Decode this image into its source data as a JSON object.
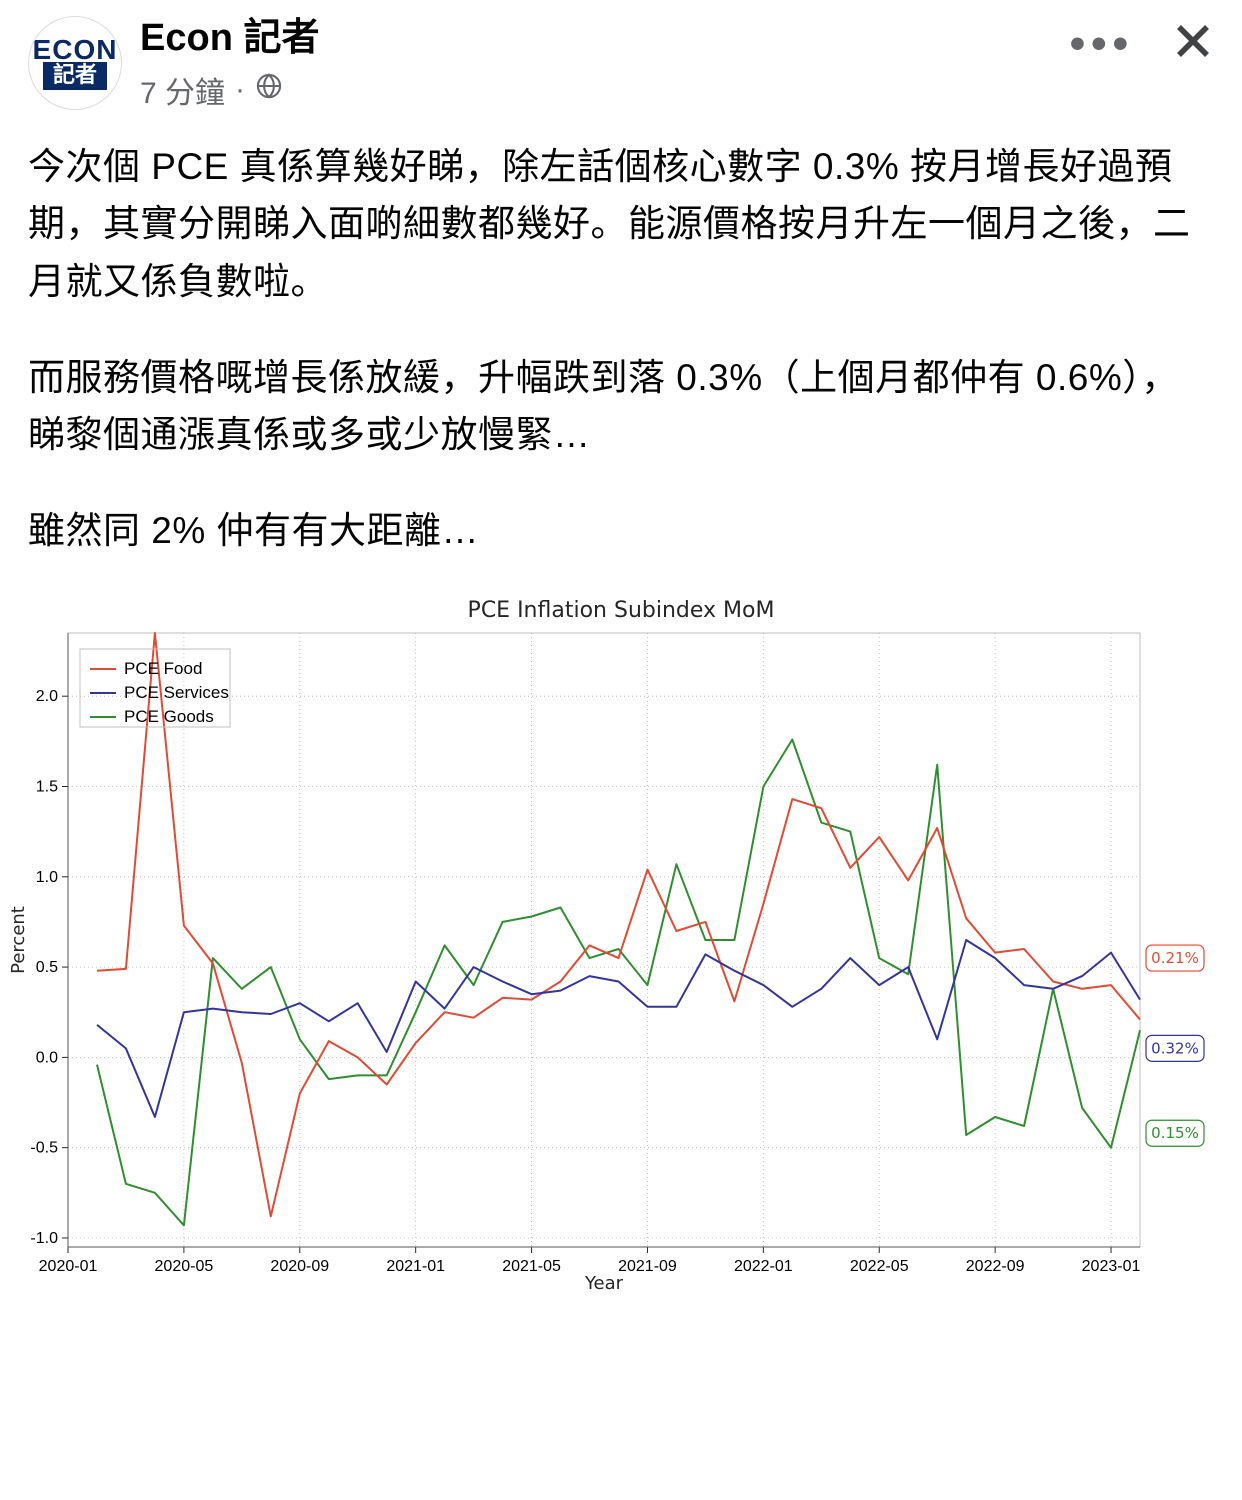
{
  "header": {
    "author": "Econ 記者",
    "avatar_top": "ECON",
    "avatar_bottom": "記者",
    "timestamp": "7 分鐘",
    "separator": "·",
    "privacy_icon": "globe-icon"
  },
  "actions": {
    "more_label": "•••",
    "close_label": "✕"
  },
  "body": {
    "p1": "今次個 PCE 真係算幾好睇，除左話個核心數字 0.3% 按月增長好過預期，其實分開睇入面啲細數都幾好。能源價格按月升左一個月之後，二月就又係負數啦。",
    "p2": "而服務價格嘅增長係放緩，升幅跌到落 0.3%（上個月都仲有 0.6%），睇黎個通漲真係或多或少放慢緊…",
    "p3": "雖然同 2% 仲有有大距離…"
  },
  "chart": {
    "type": "line",
    "title": "PCE Inflation Subindex MoM",
    "xlabel": "Year",
    "ylabel": "Percent",
    "background_color": "#ffffff",
    "grid_color": "#b0b0b0",
    "grid_dash": "1,3",
    "axis_color": "#262626",
    "title_fontsize": 22,
    "label_fontsize": 18,
    "tick_fontsize": 16,
    "line_width": 2,
    "x_ticks": [
      "2020-01",
      "2020-05",
      "2020-09",
      "2021-01",
      "2021-05",
      "2021-09",
      "2022-01",
      "2022-05",
      "2022-09",
      "2023-01"
    ],
    "x_tick_idx": [
      0,
      4,
      8,
      12,
      16,
      20,
      24,
      28,
      32,
      36
    ],
    "x_count": 38,
    "ylim": [
      -1.05,
      2.35
    ],
    "y_ticks": [
      -1.0,
      -0.5,
      0.0,
      0.5,
      1.0,
      1.5,
      2.0
    ],
    "legend": {
      "position": "upper-left",
      "items": [
        {
          "label": "PCE Food",
          "color": "#e24a33"
        },
        {
          "label": "PCE Services",
          "color": "#34349f"
        },
        {
          "label": "PCE Goods",
          "color": "#2f8f2f"
        }
      ]
    },
    "series": {
      "food": {
        "color": "#e24a33",
        "end_label": "0.21%",
        "values": [
          null,
          0.48,
          0.49,
          2.35,
          0.73,
          0.52,
          -0.03,
          -0.88,
          -0.2,
          0.09,
          0.0,
          -0.15,
          0.08,
          0.25,
          0.22,
          0.33,
          0.32,
          0.42,
          0.62,
          0.55,
          1.04,
          0.7,
          0.75,
          0.31,
          0.85,
          1.43,
          1.38,
          1.05,
          1.22,
          0.98,
          1.27,
          0.77,
          0.58,
          0.6,
          0.42,
          0.38,
          0.4,
          0.21
        ]
      },
      "services": {
        "color": "#34349f",
        "end_label": "0.32%",
        "values": [
          null,
          0.18,
          0.05,
          -0.33,
          0.25,
          0.27,
          0.25,
          0.24,
          0.3,
          0.2,
          0.3,
          0.03,
          0.42,
          0.27,
          0.5,
          0.42,
          0.35,
          0.37,
          0.45,
          0.42,
          0.28,
          0.28,
          0.57,
          0.48,
          0.4,
          0.28,
          0.38,
          0.55,
          0.4,
          0.5,
          0.1,
          0.65,
          0.55,
          0.4,
          0.38,
          0.45,
          0.58,
          0.32
        ]
      },
      "goods": {
        "color": "#2f8f2f",
        "end_label": "0.15%",
        "values": [
          null,
          -0.04,
          -0.7,
          -0.75,
          -0.93,
          0.55,
          0.38,
          0.5,
          0.1,
          -0.12,
          -0.1,
          -0.1,
          0.25,
          0.62,
          0.4,
          0.75,
          0.78,
          0.83,
          0.55,
          0.6,
          0.4,
          1.07,
          0.65,
          0.65,
          1.5,
          1.76,
          1.3,
          1.25,
          0.55,
          0.46,
          1.62,
          -0.43,
          -0.33,
          -0.38,
          0.38,
          -0.28,
          -0.5,
          0.15
        ]
      }
    }
  }
}
